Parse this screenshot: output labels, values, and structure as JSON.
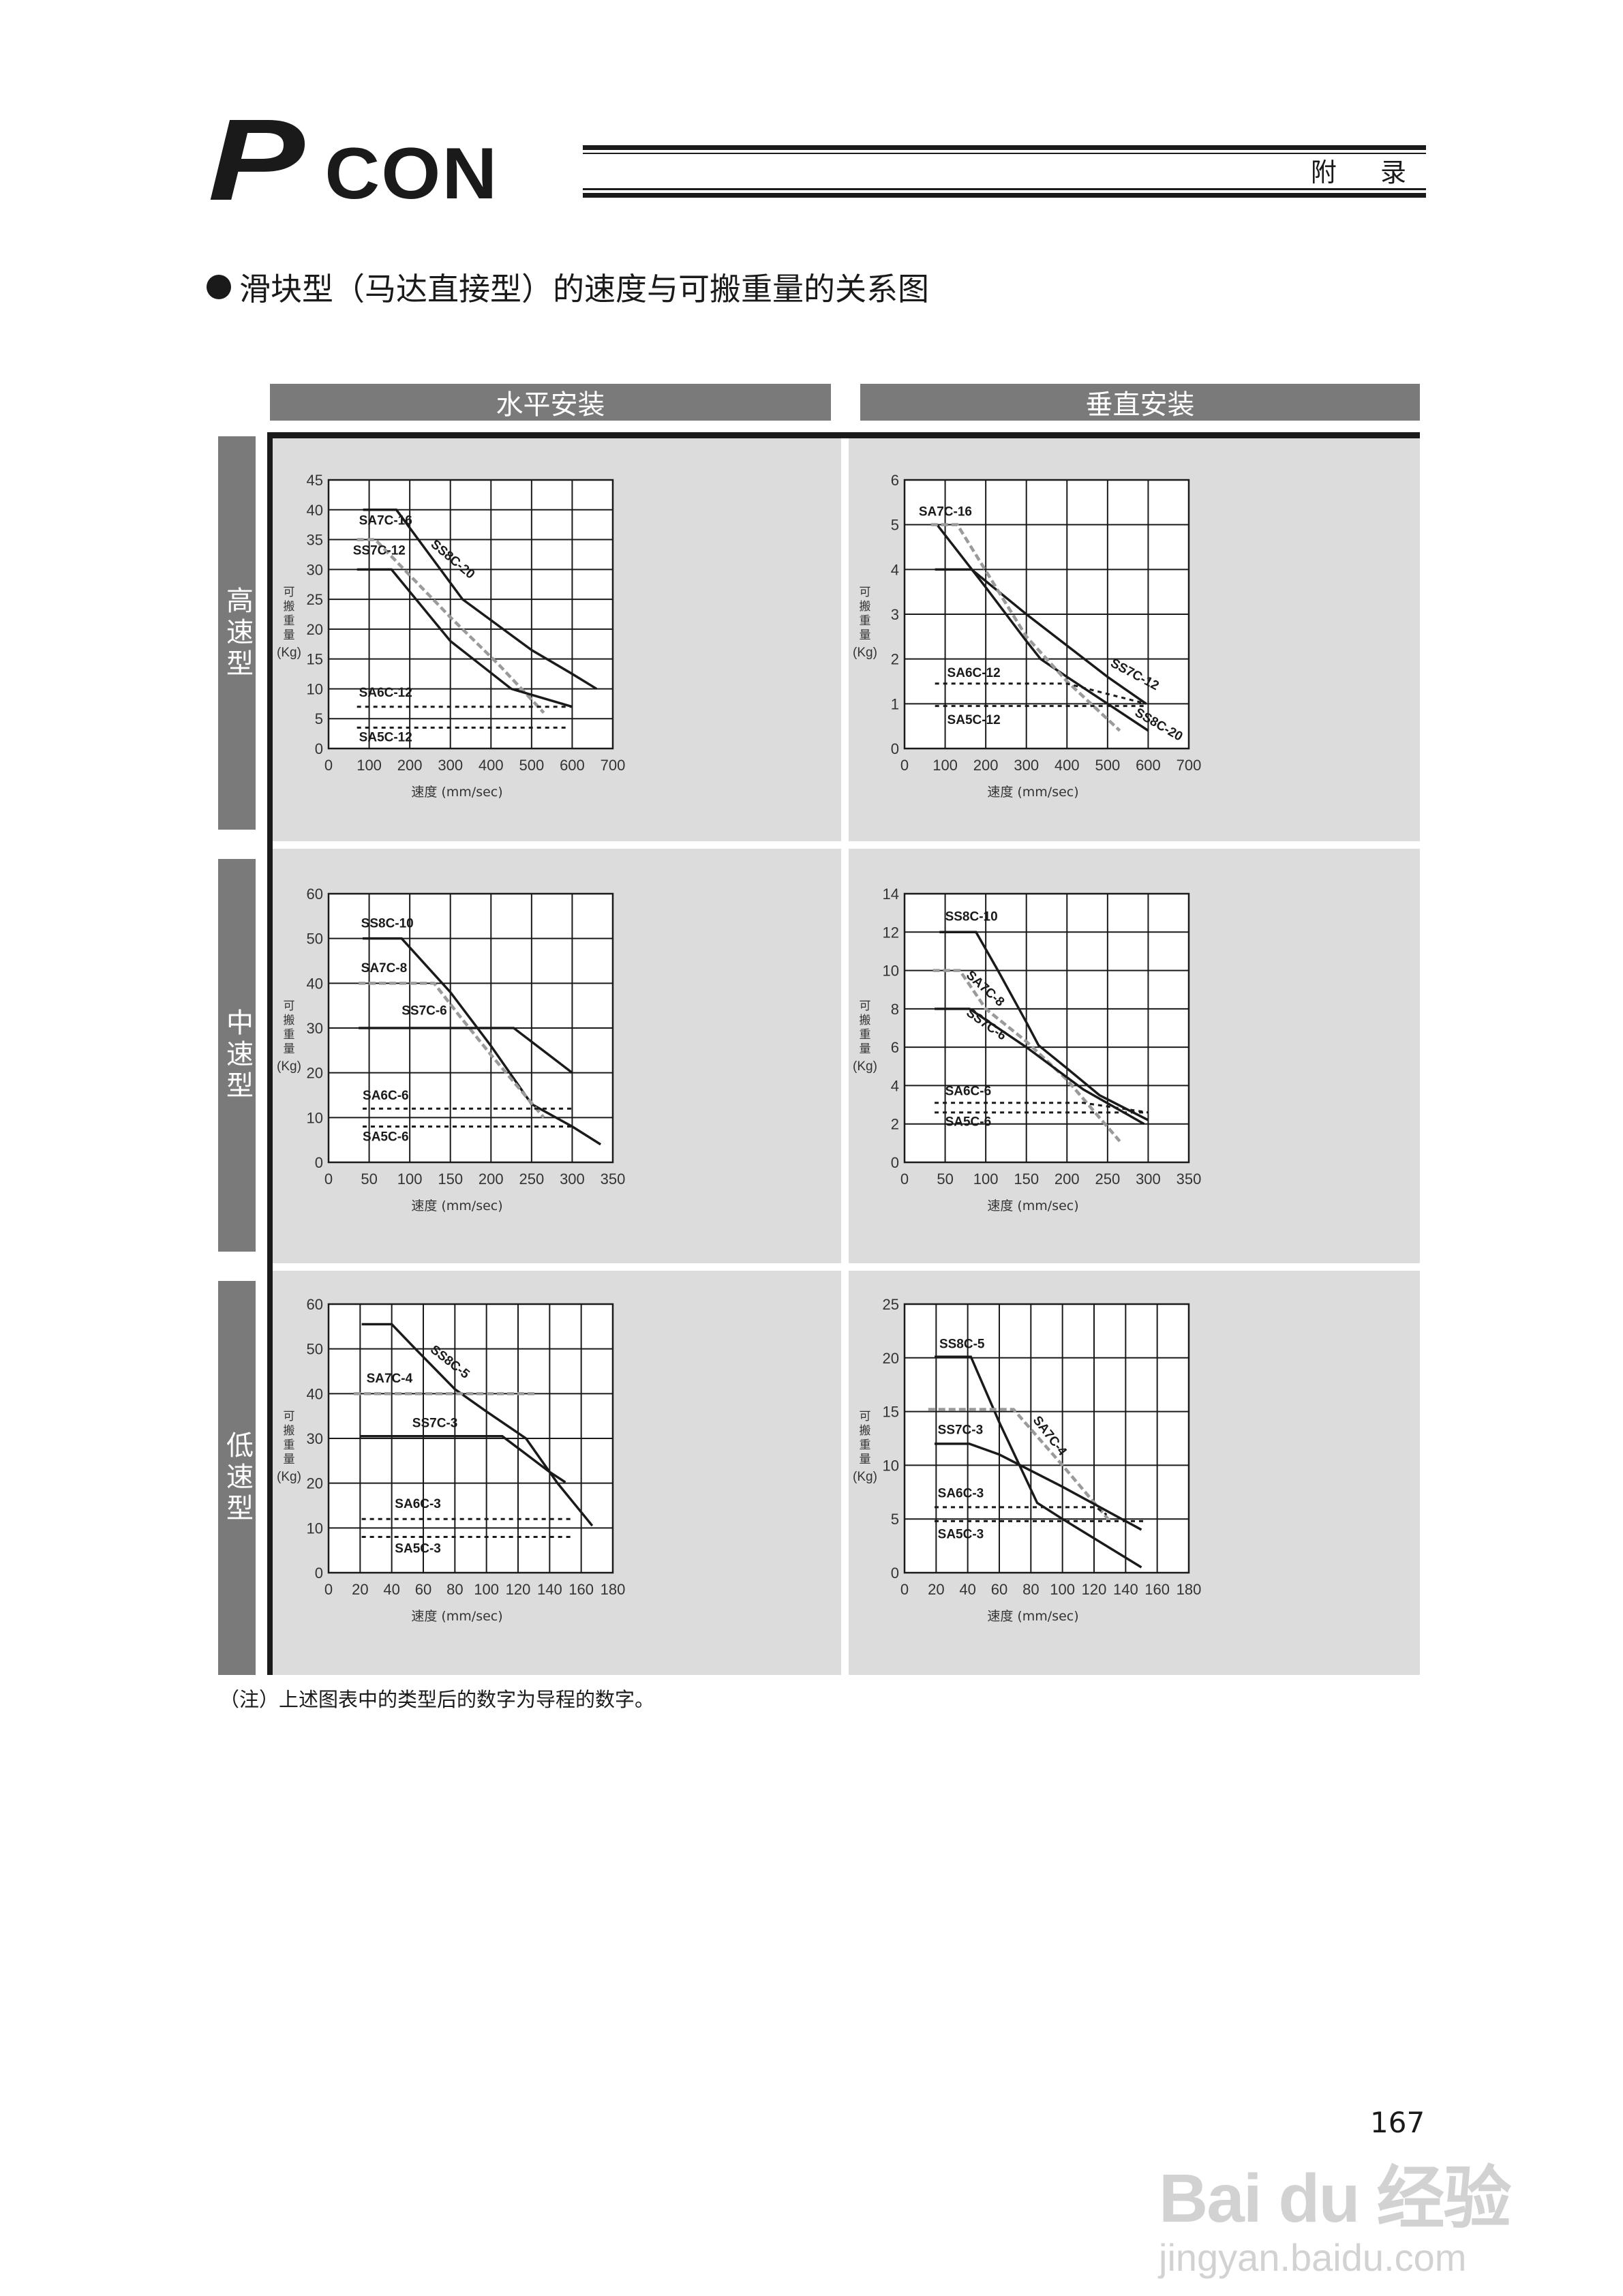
{
  "header": {
    "logo": "PCON",
    "section": "附 录"
  },
  "title": "滑块型（马达直接型）的速度与可搬重量的关系图",
  "columns": [
    "水平安装",
    "垂直安装"
  ],
  "rows": [
    "高速型",
    "中速型",
    "低速型"
  ],
  "footnote": "（注）上述图表中的类型后的数字为导程的数字。",
  "page_number": "167",
  "watermark": {
    "line1": "Bai du 经验",
    "line2": "jingyan.baidu.com"
  },
  "styles": {
    "solid": "#1a1a1a",
    "dashed": "#9a9a9a",
    "dotted": "#1a1a1a",
    "panel_bg": "#dcdcdc",
    "header_bg": "#7a7a7a"
  },
  "chart_data": [
    {
      "type": "line",
      "mounting": "水平安装",
      "speed_class": "高速型",
      "xlabel": "速度 (mm/sec)",
      "ylabel": "可搬重量(Kg)",
      "xlim": [
        0,
        700
      ],
      "ylim": [
        0,
        45
      ],
      "grid": true,
      "xticks": [
        0,
        100,
        200,
        300,
        400,
        500,
        600,
        700
      ],
      "yticks": [
        0,
        5,
        10,
        15,
        20,
        25,
        30,
        35,
        40,
        45
      ],
      "series": [
        {
          "name": "SS8C-20",
          "style": "solid",
          "points": [
            [
              85,
              40
            ],
            [
              167,
              40
            ],
            [
              330,
              25
            ],
            [
              400,
              21.5
            ],
            [
              500,
              16.5
            ],
            [
              600,
              12.5
            ],
            [
              660,
              10
            ]
          ]
        },
        {
          "name": "SA7C-16",
          "style": "dashed",
          "points": [
            [
              70,
              35
            ],
            [
              115,
              35
            ],
            [
              300,
              22
            ],
            [
              420,
              14
            ],
            [
              530,
              6
            ]
          ]
        },
        {
          "name": "SS7C-12",
          "style": "solid",
          "points": [
            [
              70,
              30
            ],
            [
              155,
              30
            ],
            [
              300,
              18
            ],
            [
              450,
              10
            ],
            [
              600,
              7
            ]
          ]
        },
        {
          "name": "SA6C-12",
          "style": "dotted",
          "points": [
            [
              70,
              7
            ],
            [
              600,
              7
            ]
          ]
        },
        {
          "name": "SA5C-12",
          "style": "dotted",
          "points": [
            [
              70,
              3.5
            ],
            [
              590,
              3.5
            ]
          ]
        }
      ]
    },
    {
      "type": "line",
      "mounting": "垂直安装",
      "speed_class": "高速型",
      "xlabel": "速度 (mm/sec)",
      "ylabel": "可搬重量(Kg)",
      "xlim": [
        0,
        700
      ],
      "ylim": [
        0,
        6
      ],
      "grid": true,
      "xticks": [
        0,
        100,
        200,
        300,
        400,
        500,
        600,
        700
      ],
      "yticks": [
        0,
        1,
        2,
        3,
        4,
        5,
        6
      ],
      "series": [
        {
          "name": "SS8C-20",
          "style": "solid",
          "points": [
            [
              80,
              5
            ],
            [
              200,
              3.6
            ],
            [
              300,
              2.4
            ],
            [
              335,
              2
            ],
            [
              400,
              1.6
            ],
            [
              500,
              1
            ],
            [
              600,
              0.4
            ]
          ]
        },
        {
          "name": "SS7C-12",
          "style": "solid",
          "points": [
            [
              75,
              4
            ],
            [
              165,
              4
            ],
            [
              300,
              3
            ],
            [
              400,
              2.3
            ],
            [
              500,
              1.6
            ],
            [
              595,
              1
            ]
          ]
        },
        {
          "name": "SA7C-16",
          "style": "dashed",
          "points": [
            [
              65,
              5
            ],
            [
              130,
              5
            ],
            [
              300,
              2.5
            ],
            [
              400,
              1.5
            ],
            [
              530,
              0.4
            ]
          ]
        },
        {
          "name": "SA6C-12",
          "style": "dotted",
          "points": [
            [
              75,
              1.45
            ],
            [
              400,
              1.45
            ],
            [
              595,
              1.0
            ]
          ]
        },
        {
          "name": "SA5C-12",
          "style": "dotted",
          "points": [
            [
              75,
              0.95
            ],
            [
              595,
              0.95
            ]
          ]
        }
      ]
    },
    {
      "type": "line",
      "mounting": "水平安装",
      "speed_class": "中速型",
      "xlabel": "速度 (mm/sec)",
      "ylabel": "可搬重量(Kg)",
      "xlim": [
        0,
        350
      ],
      "ylim": [
        0,
        60
      ],
      "grid": true,
      "xticks": [
        0,
        50,
        100,
        150,
        200,
        250,
        300,
        350
      ],
      "yticks": [
        0,
        10,
        20,
        30,
        40,
        50,
        60
      ],
      "series": [
        {
          "name": "SS8C-10",
          "style": "solid",
          "points": [
            [
              42,
              50
            ],
            [
              90,
              50
            ],
            [
              150,
              38
            ],
            [
              200,
              26
            ],
            [
              250,
              13
            ],
            [
              300,
              8
            ],
            [
              335,
              4
            ]
          ]
        },
        {
          "name": "SA7C-8",
          "style": "dashed",
          "points": [
            [
              37,
              40
            ],
            [
              130,
              40
            ],
            [
              160,
              33
            ],
            [
              200,
              24
            ],
            [
              265,
              10
            ]
          ]
        },
        {
          "name": "SS7C-6",
          "style": "solid",
          "points": [
            [
              37,
              30
            ],
            [
              228,
              30
            ],
            [
              300,
              20
            ]
          ]
        },
        {
          "name": "SA6C-6",
          "style": "dotted",
          "points": [
            [
              42,
              12
            ],
            [
              300,
              12
            ]
          ]
        },
        {
          "name": "SA5C-6",
          "style": "dotted",
          "points": [
            [
              42,
              8
            ],
            [
              300,
              8
            ]
          ]
        }
      ]
    },
    {
      "type": "line",
      "mounting": "垂直安装",
      "speed_class": "中速型",
      "xlabel": "速度 (mm/sec)",
      "ylabel": "可搬重量(Kg)",
      "xlim": [
        0,
        350
      ],
      "ylim": [
        0,
        14
      ],
      "grid": true,
      "xticks": [
        0,
        50,
        100,
        150,
        200,
        250,
        300,
        350
      ],
      "yticks": [
        0,
        2,
        4,
        6,
        8,
        10,
        12,
        14
      ],
      "series": [
        {
          "name": "SS8C-10",
          "style": "solid",
          "points": [
            [
              43,
              12
            ],
            [
              88,
              12
            ],
            [
              115,
              10
            ],
            [
              150,
              7.3
            ],
            [
              165,
              6.1
            ],
            [
              200,
              4.9
            ],
            [
              240,
              3.5
            ],
            [
              300,
              2.2
            ]
          ]
        },
        {
          "name": "SA7C-8",
          "style": "dashed",
          "points": [
            [
              35,
              10
            ],
            [
              68,
              10
            ],
            [
              100,
              8
            ],
            [
              150,
              6.3
            ],
            [
              200,
              4.3
            ],
            [
              265,
              1.1
            ]
          ]
        },
        {
          "name": "SS7C-6",
          "style": "solid",
          "points": [
            [
              37,
              8
            ],
            [
              80,
              8
            ],
            [
              150,
              6
            ],
            [
              220,
              3.8
            ],
            [
              295,
              2
            ]
          ]
        },
        {
          "name": "SA6C-6",
          "style": "dotted",
          "points": [
            [
              37,
              3.1
            ],
            [
              220,
              3.1
            ],
            [
              300,
              2.6
            ]
          ]
        },
        {
          "name": "SA5C-6",
          "style": "dotted",
          "points": [
            [
              37,
              2.6
            ],
            [
              300,
              2.6
            ]
          ]
        }
      ]
    },
    {
      "type": "line",
      "mounting": "水平安装",
      "speed_class": "低速型",
      "xlabel": "速度 (mm/sec)",
      "ylabel": "可搬重量(Kg)",
      "xlim": [
        0,
        180
      ],
      "ylim": [
        0,
        60
      ],
      "grid": true,
      "xticks": [
        0,
        20,
        40,
        60,
        80,
        100,
        120,
        140,
        160,
        180
      ],
      "yticks": [
        0,
        10,
        20,
        30,
        40,
        50,
        60
      ],
      "series": [
        {
          "name": "SS8C-5",
          "style": "solid",
          "points": [
            [
              21,
              55.5
            ],
            [
              40,
              55.5
            ],
            [
              55,
              50
            ],
            [
              80,
              41
            ],
            [
              100,
              36
            ],
            [
              125,
              30
            ],
            [
              145,
              20
            ],
            [
              167,
              10.5
            ]
          ]
        },
        {
          "name": "SA7C-4",
          "style": "dashed",
          "points": [
            [
              16,
              40
            ],
            [
              131,
              40
            ]
          ]
        },
        {
          "name": "SS7C-3",
          "style": "solid",
          "points": [
            [
              20,
              30.5
            ],
            [
              110,
              30.5
            ],
            [
              140,
              22.5
            ],
            [
              150,
              20.2
            ]
          ]
        },
        {
          "name": "SA6C-3",
          "style": "dotted",
          "points": [
            [
              21,
              12
            ],
            [
              154,
              12
            ]
          ]
        },
        {
          "name": "SA5C-3",
          "style": "dotted",
          "points": [
            [
              21,
              8
            ],
            [
              154,
              8
            ]
          ]
        }
      ]
    },
    {
      "type": "line",
      "mounting": "垂直安装",
      "speed_class": "低速型",
      "xlabel": "速度 (mm/sec)",
      "ylabel": "可搬重量(Kg)",
      "xlim": [
        0,
        180
      ],
      "ylim": [
        0,
        25
      ],
      "grid": true,
      "xticks": [
        0,
        20,
        40,
        60,
        80,
        100,
        120,
        140,
        160,
        180
      ],
      "yticks": [
        0,
        5,
        10,
        15,
        20,
        25
      ],
      "series": [
        {
          "name": "SS8C-5",
          "style": "solid",
          "points": [
            [
              19,
              20.1
            ],
            [
              42,
              20.1
            ],
            [
              60,
              14
            ],
            [
              84,
              6.5
            ],
            [
              100,
              5
            ],
            [
              150,
              0.5
            ]
          ]
        },
        {
          "name": "SA7C-4",
          "style": "dashed",
          "points": [
            [
              15,
              15.2
            ],
            [
              69,
              15.2
            ],
            [
              100,
              10
            ],
            [
              130,
              4.8
            ]
          ]
        },
        {
          "name": "SS7C-3",
          "style": "solid",
          "points": [
            [
              19,
              12
            ],
            [
              41,
              12
            ],
            [
              60,
              11
            ],
            [
              80,
              9.5
            ],
            [
              100,
              8
            ],
            [
              150,
              4
            ]
          ]
        },
        {
          "name": "SA6C-3",
          "style": "dotted",
          "points": [
            [
              19,
              6.1
            ],
            [
              121,
              6.1
            ],
            [
              128,
              5.4
            ]
          ]
        },
        {
          "name": "SA5C-3",
          "style": "dotted",
          "points": [
            [
              19,
              4.8
            ],
            [
              153,
              4.8
            ]
          ]
        }
      ]
    }
  ]
}
